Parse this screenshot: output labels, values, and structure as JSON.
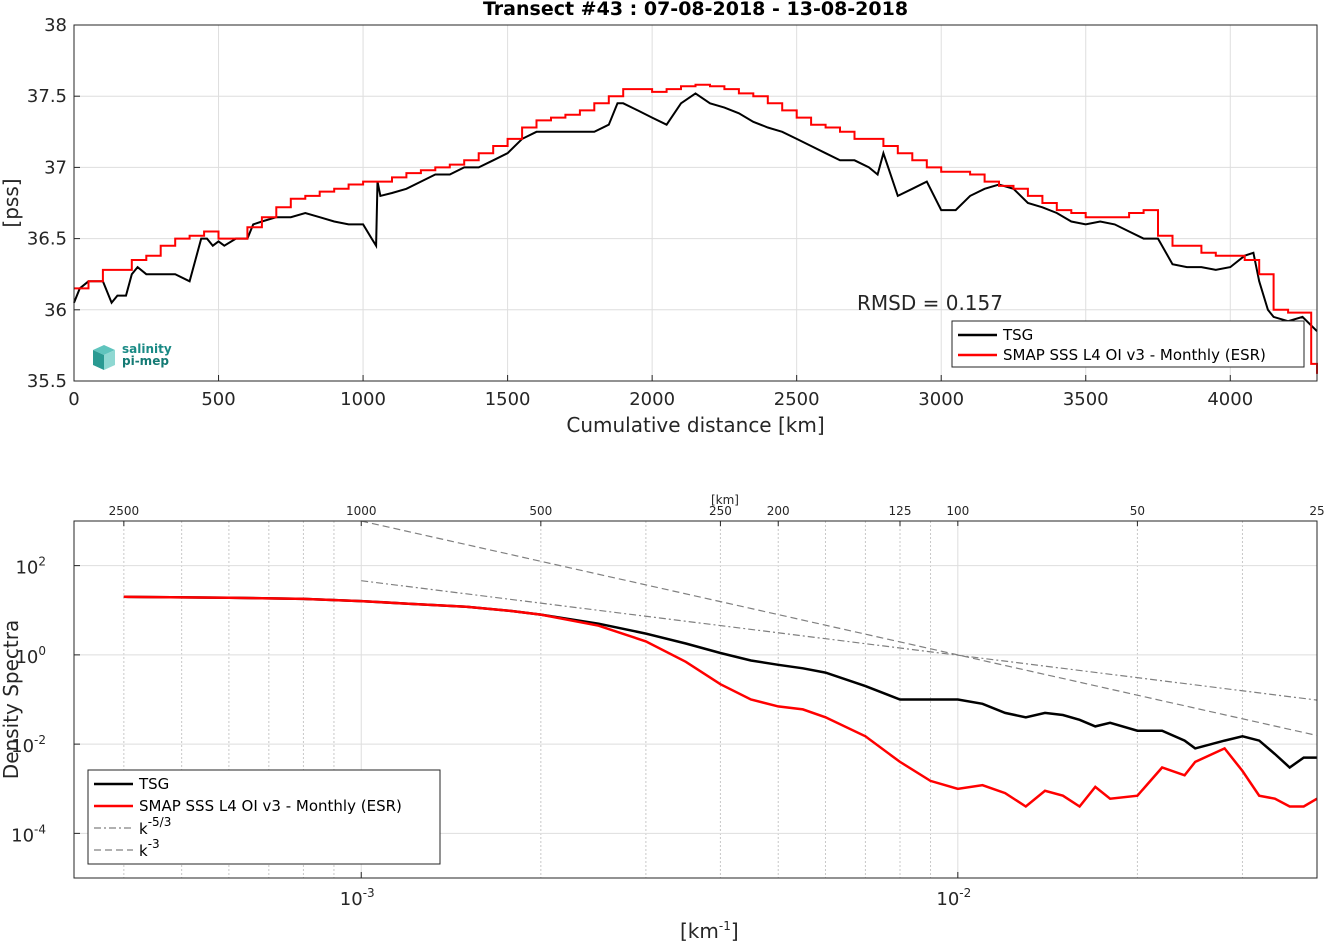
{
  "chart_data": [
    {
      "type": "line",
      "title": "Transect #43 : 07-08-2018 - 13-08-2018",
      "xlabel": "Cumulative distance [km]",
      "ylabel": "[pss]",
      "xlim": [
        0,
        4300
      ],
      "ylim": [
        35.5,
        38
      ],
      "xticks": [
        "0",
        "500",
        "1000",
        "1500",
        "2000",
        "2500",
        "3000",
        "3500",
        "4000"
      ],
      "yticks": [
        "35.5",
        "36",
        "36.5",
        "37",
        "37.5",
        "38"
      ],
      "grid": true,
      "legend_position": "bottom-right",
      "annotation": "RMSD = 0.157",
      "series": [
        {
          "name": "TSG",
          "color": "#000000",
          "x": [
            0,
            20,
            50,
            100,
            130,
            150,
            180,
            200,
            220,
            250,
            300,
            350,
            400,
            420,
            440,
            460,
            480,
            500,
            520,
            560,
            600,
            620,
            650,
            700,
            750,
            800,
            850,
            900,
            950,
            1000,
            1030,
            1045,
            1050,
            1060,
            1100,
            1150,
            1200,
            1250,
            1300,
            1350,
            1400,
            1450,
            1500,
            1550,
            1600,
            1650,
            1700,
            1750,
            1800,
            1850,
            1880,
            1900,
            1950,
            2000,
            2050,
            2100,
            2150,
            2200,
            2250,
            2300,
            2350,
            2400,
            2450,
            2500,
            2550,
            2600,
            2650,
            2700,
            2750,
            2780,
            2800,
            2850,
            2900,
            2950,
            3000,
            3050,
            3100,
            3150,
            3200,
            3250,
            3300,
            3350,
            3400,
            3450,
            3500,
            3550,
            3600,
            3650,
            3700,
            3750,
            3800,
            3850,
            3900,
            3950,
            4000,
            4050,
            4080,
            4100,
            4130,
            4150,
            4200,
            4250,
            4300
          ],
          "y": [
            36.05,
            36.15,
            36.2,
            36.2,
            36.05,
            36.1,
            36.1,
            36.25,
            36.3,
            36.25,
            36.25,
            36.25,
            36.2,
            36.35,
            36.5,
            36.5,
            36.45,
            36.48,
            36.45,
            36.5,
            36.5,
            36.6,
            36.62,
            36.65,
            36.65,
            36.68,
            36.65,
            36.62,
            36.6,
            36.6,
            36.5,
            36.45,
            36.9,
            36.8,
            36.82,
            36.85,
            36.9,
            36.95,
            36.95,
            37.0,
            37.0,
            37.05,
            37.1,
            37.2,
            37.25,
            37.25,
            37.25,
            37.25,
            37.25,
            37.3,
            37.45,
            37.45,
            37.4,
            37.35,
            37.3,
            37.45,
            37.52,
            37.45,
            37.42,
            37.38,
            37.32,
            37.28,
            37.25,
            37.2,
            37.15,
            37.1,
            37.05,
            37.05,
            37.0,
            36.95,
            37.1,
            36.8,
            36.85,
            36.9,
            36.7,
            36.7,
            36.8,
            36.85,
            36.88,
            36.85,
            36.75,
            36.72,
            36.68,
            36.62,
            36.6,
            36.62,
            36.6,
            36.55,
            36.5,
            36.5,
            36.32,
            36.3,
            36.3,
            36.28,
            36.3,
            36.38,
            36.4,
            36.2,
            36.0,
            35.95,
            35.92,
            35.95,
            35.85
          ]
        },
        {
          "name": "SMAP SSS L4 OI v3 - Monthly (ESR)",
          "color": "#ff0000",
          "x": [
            0,
            50,
            100,
            150,
            200,
            250,
            300,
            350,
            400,
            450,
            500,
            550,
            600,
            650,
            700,
            750,
            800,
            850,
            900,
            950,
            1000,
            1050,
            1100,
            1150,
            1200,
            1250,
            1300,
            1350,
            1400,
            1450,
            1500,
            1550,
            1600,
            1650,
            1700,
            1750,
            1800,
            1850,
            1900,
            1950,
            2000,
            2050,
            2100,
            2150,
            2200,
            2250,
            2300,
            2350,
            2400,
            2450,
            2500,
            2550,
            2600,
            2650,
            2700,
            2750,
            2800,
            2850,
            2900,
            2950,
            3000,
            3050,
            3100,
            3150,
            3200,
            3250,
            3300,
            3350,
            3400,
            3450,
            3500,
            3550,
            3600,
            3650,
            3700,
            3750,
            3800,
            3850,
            3900,
            3950,
            4000,
            4050,
            4100,
            4150,
            4200,
            4250,
            4280,
            4300
          ],
          "y": [
            36.15,
            36.2,
            36.28,
            36.28,
            36.35,
            36.38,
            36.45,
            36.5,
            36.52,
            36.55,
            36.5,
            36.5,
            36.58,
            36.65,
            36.72,
            36.78,
            36.8,
            36.83,
            36.85,
            36.88,
            36.9,
            36.9,
            36.93,
            36.96,
            36.98,
            37.0,
            37.02,
            37.05,
            37.1,
            37.15,
            37.2,
            37.28,
            37.33,
            37.35,
            37.37,
            37.4,
            37.45,
            37.5,
            37.55,
            37.55,
            37.53,
            37.55,
            37.57,
            37.58,
            37.57,
            37.55,
            37.52,
            37.5,
            37.45,
            37.4,
            37.35,
            37.3,
            37.28,
            37.25,
            37.2,
            37.2,
            37.15,
            37.1,
            37.05,
            37.0,
            36.97,
            36.97,
            36.95,
            36.9,
            36.87,
            36.85,
            36.8,
            36.75,
            36.7,
            36.68,
            36.65,
            36.65,
            36.65,
            36.68,
            36.7,
            36.52,
            36.45,
            36.45,
            36.4,
            36.38,
            36.38,
            36.35,
            36.25,
            36.0,
            35.98,
            35.98,
            35.62,
            35.55
          ]
        }
      ]
    },
    {
      "type": "line",
      "xlabel": "[km-1]",
      "ylabel": "Density Spectra",
      "x_scale": "log",
      "y_scale": "log",
      "xlim": [
        0.00033,
        0.04
      ],
      "ylim": [
        1e-05,
        1000
      ],
      "xticks": [
        "10-3",
        "10-2"
      ],
      "yticks": [
        "10-4",
        "10-2",
        "100",
        "102"
      ],
      "top_axis_label": "[km]",
      "top_ticks": [
        "2500",
        "1000",
        "500",
        "250",
        "200",
        "125",
        "100",
        "50",
        "25"
      ],
      "grid": true,
      "legend_position": "bottom-left",
      "series": [
        {
          "name": "TSG",
          "color": "#000000",
          "x": [
            0.0004,
            0.0006,
            0.0008,
            0.001,
            0.0012,
            0.0015,
            0.0018,
            0.002,
            0.0025,
            0.003,
            0.0035,
            0.004,
            0.0045,
            0.005,
            0.0055,
            0.006,
            0.007,
            0.008,
            0.009,
            0.01,
            0.011,
            0.012,
            0.013,
            0.014,
            0.015,
            0.016,
            0.017,
            0.018,
            0.02,
            0.022,
            0.024,
            0.025,
            0.028,
            0.03,
            0.032,
            0.034,
            0.036,
            0.038,
            0.04
          ],
          "y": [
            20,
            19,
            18,
            16,
            14,
            12,
            9.5,
            8,
            5,
            3,
            1.8,
            1.1,
            0.75,
            0.6,
            0.5,
            0.4,
            0.2,
            0.1,
            0.1,
            0.1,
            0.08,
            0.05,
            0.04,
            0.05,
            0.045,
            0.035,
            0.025,
            0.03,
            0.02,
            0.02,
            0.012,
            0.008,
            0.012,
            0.015,
            0.012,
            0.006,
            0.003,
            0.005,
            0.005
          ]
        },
        {
          "name": "SMAP SSS L4 OI v3 - Monthly (ESR)",
          "color": "#ff0000",
          "x": [
            0.0004,
            0.0006,
            0.0008,
            0.001,
            0.0012,
            0.0015,
            0.0018,
            0.002,
            0.0025,
            0.003,
            0.0035,
            0.004,
            0.0045,
            0.005,
            0.0055,
            0.006,
            0.007,
            0.008,
            0.009,
            0.01,
            0.011,
            0.012,
            0.013,
            0.014,
            0.015,
            0.016,
            0.017,
            0.018,
            0.02,
            0.022,
            0.024,
            0.025,
            0.028,
            0.03,
            0.032,
            0.034,
            0.036,
            0.038,
            0.04
          ],
          "y": [
            20,
            19,
            18,
            16,
            14,
            12,
            9.5,
            8,
            4.5,
            2,
            0.7,
            0.22,
            0.1,
            0.07,
            0.06,
            0.04,
            0.015,
            0.004,
            0.0015,
            0.001,
            0.0012,
            0.0008,
            0.0004,
            0.0009,
            0.0007,
            0.0004,
            0.0011,
            0.0006,
            0.0007,
            0.003,
            0.002,
            0.004,
            0.008,
            0.0025,
            0.0007,
            0.0006,
            0.0004,
            0.0004,
            0.0006
          ]
        },
        {
          "name": "k-5/3",
          "color": "#808080",
          "style": "dash-dot",
          "x": [
            0.001,
            0.04
          ],
          "y": [
            46,
            0.097
          ]
        },
        {
          "name": "k-3",
          "color": "#808080",
          "style": "dashed",
          "x": [
            0.001,
            0.04
          ],
          "y": [
            1000,
            0.0156
          ]
        }
      ]
    }
  ],
  "logo": {
    "line1": "salinity",
    "line2": "pi-mep"
  }
}
